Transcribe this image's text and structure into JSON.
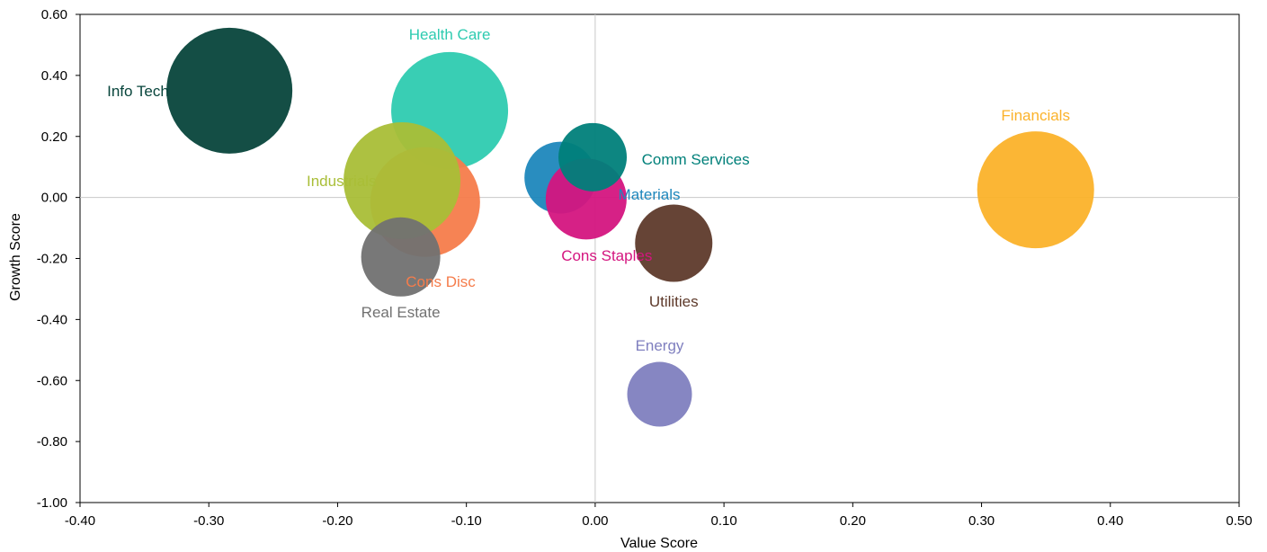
{
  "chart_data": {
    "type": "scatter",
    "title": "",
    "xlabel": "Value Score",
    "ylabel": "Growth Score",
    "xlim": [
      -0.4,
      0.5
    ],
    "ylim": [
      -1.0,
      0.6
    ],
    "xticks": [
      "-0.40",
      "-0.30",
      "-0.20",
      "-0.10",
      "0.00",
      "0.10",
      "0.20",
      "0.30",
      "0.40",
      "0.50"
    ],
    "yticks": [
      "0.60",
      "0.40",
      "0.20",
      "0.00",
      "-0.20",
      "-0.40",
      "-0.60",
      "-0.80",
      "-1.00"
    ],
    "grid": false,
    "legend": "none",
    "points": [
      {
        "name": "Info Tech",
        "x": -0.284,
        "y": 0.35,
        "r": 70,
        "color": "#07443B",
        "label_x": -0.355,
        "label_y": 0.35,
        "anchor": "middle"
      },
      {
        "name": "Health Care",
        "x": -0.113,
        "y": 0.285,
        "r": 65,
        "color": "#2ECBB0",
        "label_x": -0.113,
        "label_y": 0.535,
        "anchor": "middle"
      },
      {
        "name": "Cons Disc",
        "x": -0.132,
        "y": -0.015,
        "r": 61,
        "color": "#F57C4B",
        "label_x": -0.12,
        "label_y": -0.275,
        "anchor": "middle"
      },
      {
        "name": "Industrials",
        "x": -0.15,
        "y": 0.055,
        "r": 65,
        "color": "#A9BE37",
        "label_x": -0.197,
        "label_y": 0.055,
        "anchor": "middle"
      },
      {
        "name": "Real Estate",
        "x": -0.151,
        "y": -0.195,
        "r": 44,
        "color": "#717171",
        "label_x": -0.151,
        "label_y": -0.375,
        "anchor": "middle"
      },
      {
        "name": "Materials",
        "x": -0.027,
        "y": 0.065,
        "r": 40,
        "color": "#1E87BC",
        "label_x": 0.042,
        "label_y": 0.01,
        "anchor": "middle"
      },
      {
        "name": "Cons Staples",
        "x": -0.007,
        "y": -0.005,
        "r": 45,
        "color": "#D4157F",
        "label_x": 0.009,
        "label_y": -0.19,
        "anchor": "middle"
      },
      {
        "name": "Comm Services",
        "x": -0.002,
        "y": 0.132,
        "r": 38,
        "color": "#00807A",
        "label_x": 0.078,
        "label_y": 0.125,
        "anchor": "middle"
      },
      {
        "name": "Utilities",
        "x": 0.061,
        "y": -0.15,
        "r": 43,
        "color": "#5E3A2B",
        "label_x": 0.061,
        "label_y": -0.34,
        "anchor": "middle"
      },
      {
        "name": "Energy",
        "x": 0.05,
        "y": -0.645,
        "r": 36,
        "color": "#7F7FBF",
        "label_x": 0.05,
        "label_y": -0.485,
        "anchor": "middle"
      },
      {
        "name": "Financials",
        "x": 0.342,
        "y": 0.025,
        "r": 65,
        "color": "#FBB22A",
        "label_x": 0.342,
        "label_y": 0.27,
        "anchor": "middle"
      }
    ]
  }
}
